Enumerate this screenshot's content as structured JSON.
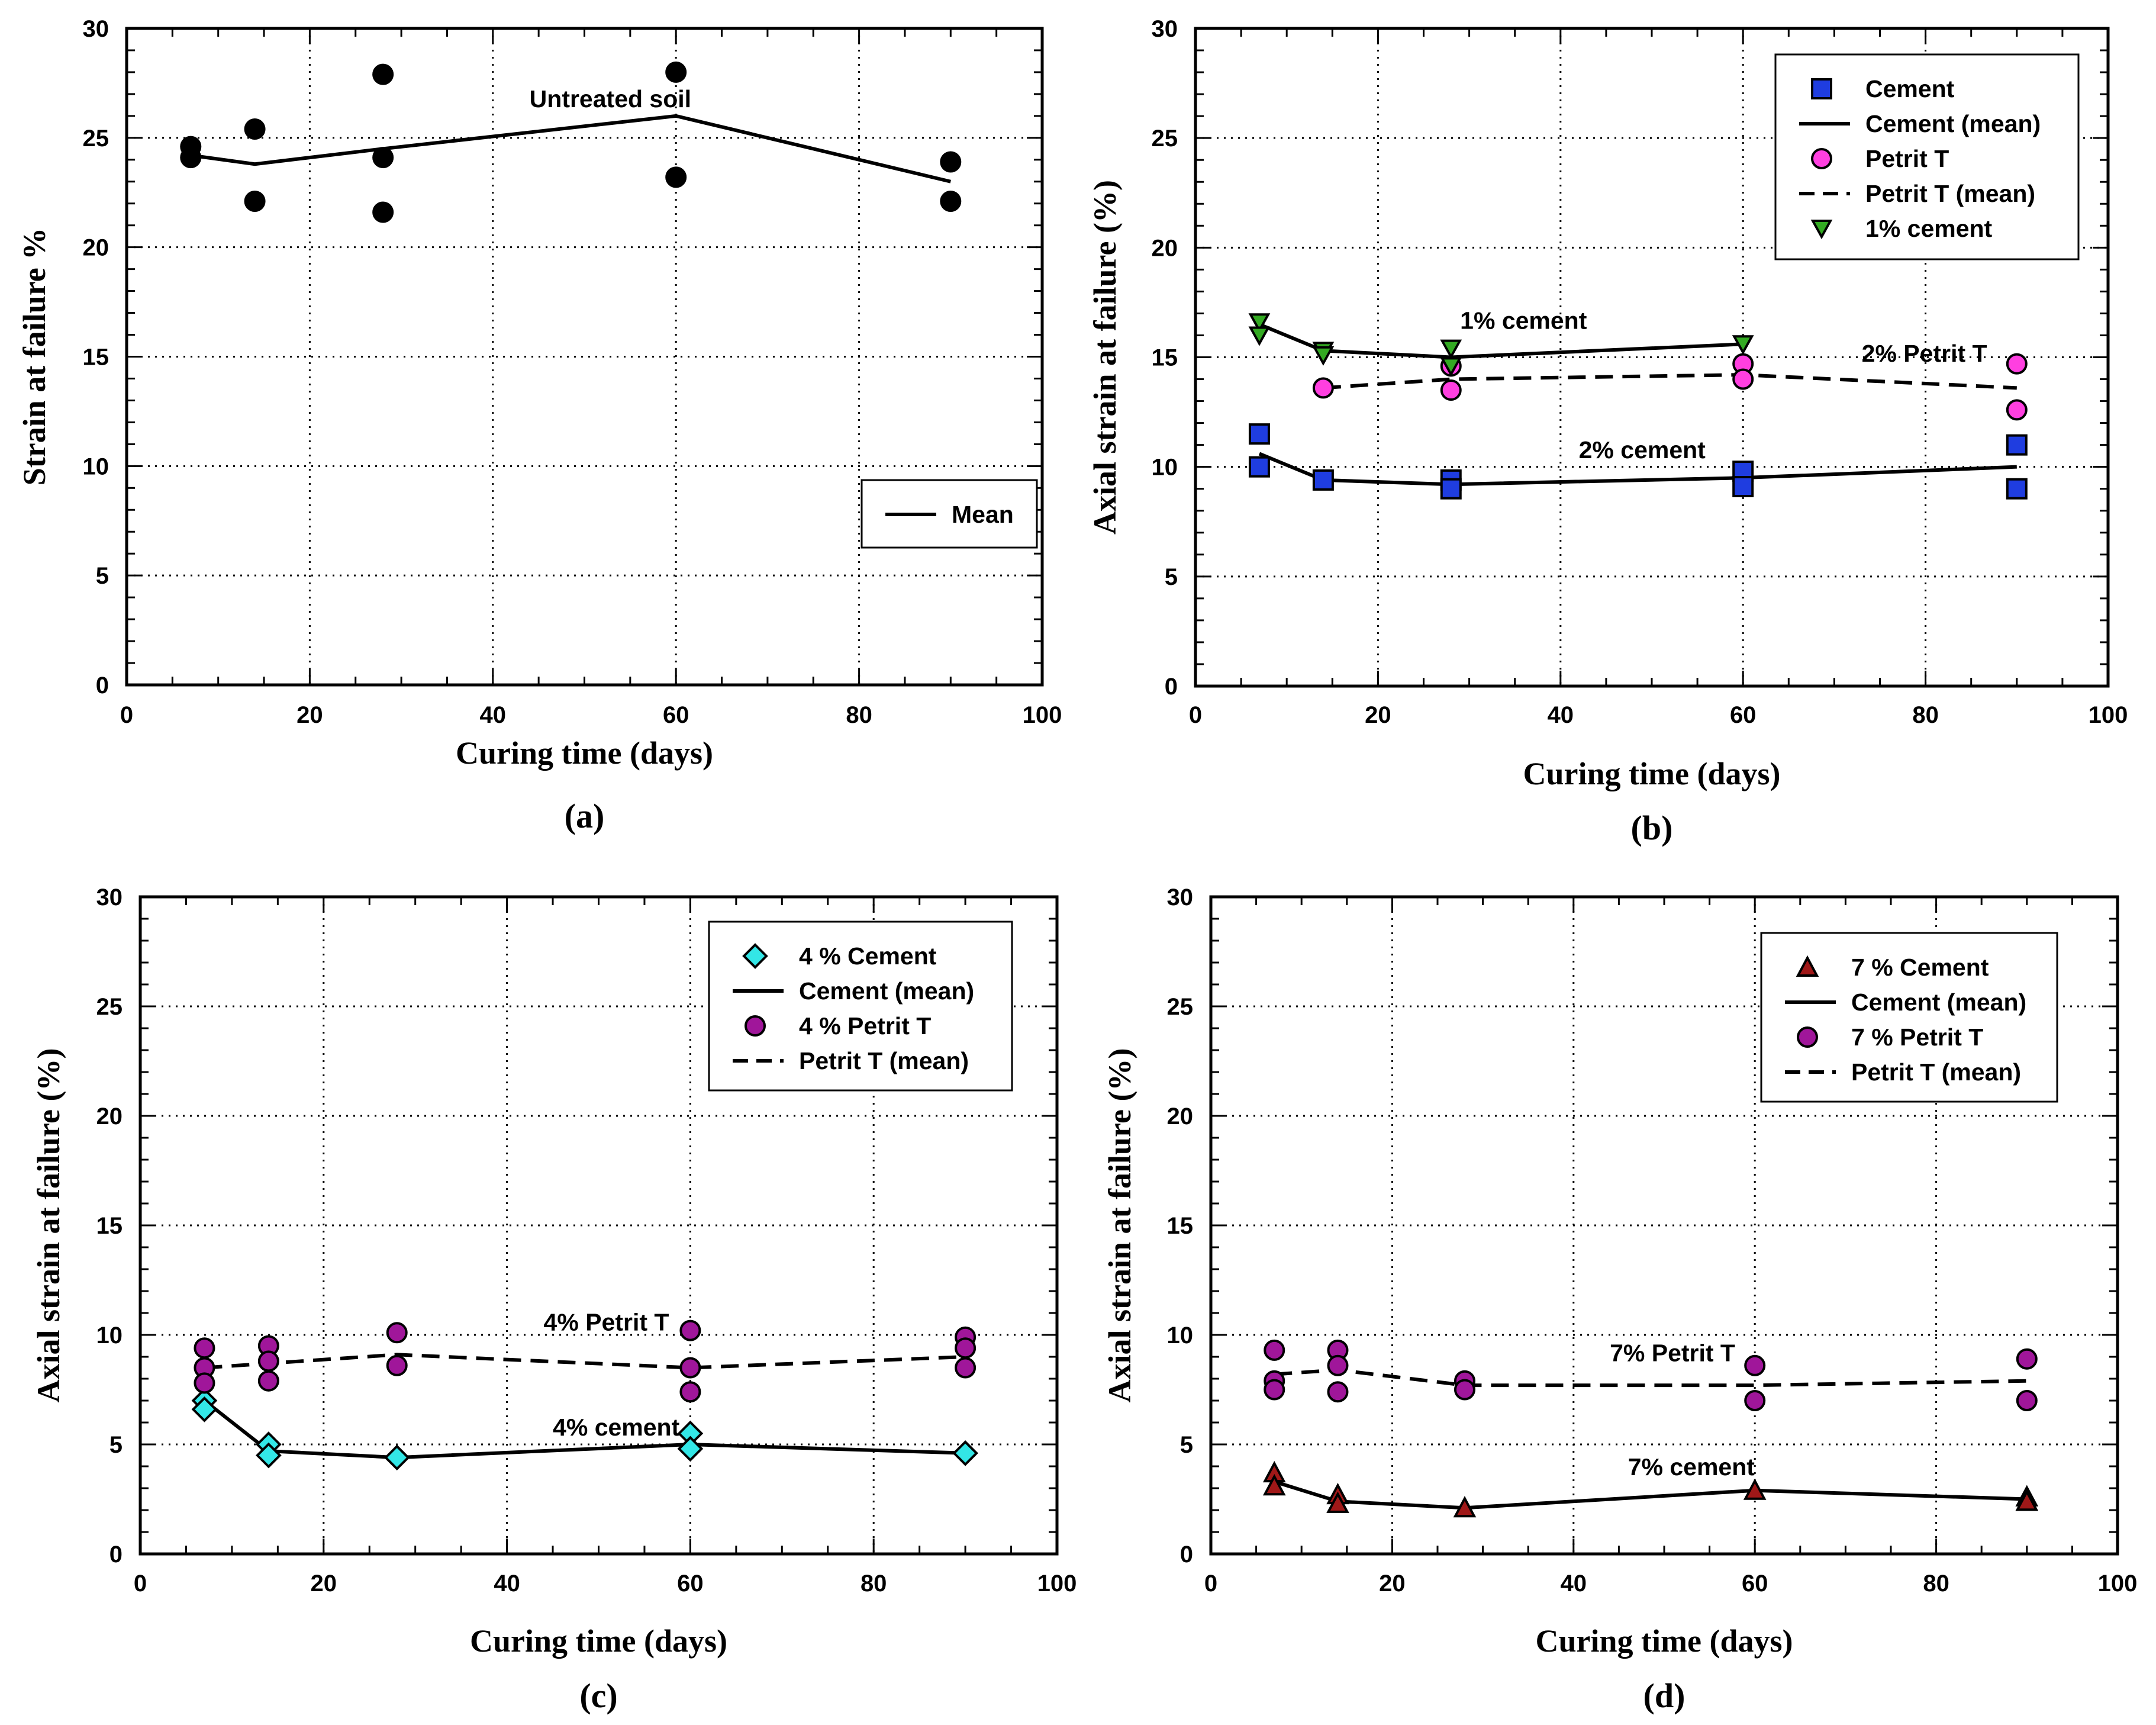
{
  "colors": {
    "background": "#ffffff",
    "axis": "#000000",
    "grid": "#000000",
    "cement_blue": "#1f3de0",
    "petrit_magenta": "#ff3fe0",
    "one_pct_green": "#33aa22",
    "cyan": "#33e6e6",
    "purple": "#a0169a",
    "dark_red": "#a01818",
    "black": "#000000"
  },
  "chart_data": [
    {
      "panel": "(a)",
      "type": "scatter",
      "xlabel": "Curing time (days)",
      "ylabel": "Strain at failure %",
      "xlim": [
        0,
        100
      ],
      "ylim": [
        0,
        30
      ],
      "xticks": [
        0,
        20,
        40,
        60,
        80,
        100
      ],
      "yticks": [
        0,
        5,
        10,
        15,
        20,
        25,
        30
      ],
      "grid": true,
      "legend_position": "right-middle",
      "legend": [
        {
          "label": "Mean",
          "kind": "line",
          "dash": "solid",
          "color": "#000000"
        }
      ],
      "series": [
        {
          "name": "Untreated soil",
          "kind": "points",
          "marker": "circle",
          "fill": "#000000",
          "x": [
            7,
            7,
            14,
            14,
            28,
            28,
            28,
            60,
            60,
            90,
            90
          ],
          "y": [
            24.6,
            24.1,
            25.4,
            22.1,
            27.9,
            24.1,
            21.6,
            28.0,
            23.2,
            23.9,
            22.1
          ]
        },
        {
          "name": "Mean",
          "kind": "line",
          "dash": "solid",
          "color": "#000000",
          "x": [
            7,
            14,
            28,
            60,
            90
          ],
          "y": [
            24.2,
            23.8,
            24.5,
            26.0,
            23.0
          ]
        }
      ],
      "annotations": [
        {
          "text": "Untreated soil",
          "x": 44,
          "y": 26.4
        }
      ]
    },
    {
      "panel": "(b)",
      "type": "scatter",
      "xlabel": "Curing time (days)",
      "ylabel": "Axial strain at failure (%)",
      "xlim": [
        0,
        100
      ],
      "ylim": [
        0,
        30
      ],
      "xticks": [
        0,
        20,
        40,
        60,
        80,
        100
      ],
      "yticks": [
        0,
        5,
        10,
        15,
        20,
        25,
        30
      ],
      "grid": true,
      "legend_position": "top-right",
      "legend": [
        {
          "label": "Cement",
          "kind": "marker",
          "marker": "square",
          "fill": "#1f3de0"
        },
        {
          "label": "Cement (mean)",
          "kind": "line",
          "dash": "solid",
          "color": "#000000"
        },
        {
          "label": "Petrit T",
          "kind": "marker",
          "marker": "circle",
          "fill": "#ff3fe0"
        },
        {
          "label": "Petrit T (mean)",
          "kind": "line",
          "dash": "dashed",
          "color": "#000000"
        },
        {
          "label": "1% cement",
          "kind": "marker",
          "marker": "triangle-down",
          "fill": "#33aa22"
        }
      ],
      "series": [
        {
          "name": "Cement",
          "kind": "points",
          "marker": "square",
          "fill": "#1f3de0",
          "x": [
            7,
            7,
            14,
            28,
            28,
            60,
            60,
            90,
            90
          ],
          "y": [
            11.5,
            10.0,
            9.4,
            9.4,
            9.0,
            9.8,
            9.1,
            11.0,
            9.0
          ]
        },
        {
          "name": "Cement (mean)",
          "kind": "line",
          "dash": "solid",
          "color": "#000000",
          "x": [
            7,
            14,
            28,
            60,
            90
          ],
          "y": [
            10.6,
            9.4,
            9.2,
            9.5,
            10.0
          ]
        },
        {
          "name": "Petrit T",
          "kind": "points",
          "marker": "circle",
          "fill": "#ff3fe0",
          "x": [
            14,
            28,
            28,
            60,
            60,
            90,
            90
          ],
          "y": [
            13.6,
            13.5,
            14.6,
            14.7,
            14.0,
            14.7,
            12.6
          ]
        },
        {
          "name": "Petrit T (mean)",
          "kind": "line",
          "dash": "dashed",
          "color": "#000000",
          "x": [
            14,
            28,
            60,
            90
          ],
          "y": [
            13.6,
            14.0,
            14.2,
            13.6
          ]
        },
        {
          "name": "1% cement",
          "kind": "points",
          "marker": "triangle-down",
          "fill": "#33aa22",
          "x": [
            7,
            7,
            14,
            14,
            28,
            28,
            60
          ],
          "y": [
            16.6,
            16.0,
            15.3,
            15.1,
            15.4,
            14.6,
            15.6
          ]
        },
        {
          "name": "1% cement (mean)",
          "kind": "line",
          "dash": "solid",
          "color": "#000000",
          "x": [
            7,
            14,
            28,
            60
          ],
          "y": [
            16.5,
            15.3,
            15.0,
            15.6
          ]
        }
      ],
      "annotations": [
        {
          "text": "1% cement",
          "x": 29,
          "y": 16.3
        },
        {
          "text": "2% Petrit T",
          "x": 73,
          "y": 14.8
        },
        {
          "text": "2% cement",
          "x": 42,
          "y": 10.4
        }
      ]
    },
    {
      "panel": "(c)",
      "type": "scatter",
      "xlabel": "Curing time (days)",
      "ylabel": "Axial strain at failure (%)",
      "xlim": [
        0,
        100
      ],
      "ylim": [
        0,
        30
      ],
      "xticks": [
        0,
        20,
        40,
        60,
        80,
        100
      ],
      "yticks": [
        0,
        5,
        10,
        15,
        20,
        25,
        30
      ],
      "grid": true,
      "legend_position": "top-right",
      "legend": [
        {
          "label": "4 % Cement",
          "kind": "marker",
          "marker": "diamond",
          "fill": "#33e6e6"
        },
        {
          "label": "Cement (mean)",
          "kind": "line",
          "dash": "solid",
          "color": "#000000"
        },
        {
          "label": "4 % Petrit T",
          "kind": "marker",
          "marker": "circle",
          "fill": "#a0169a"
        },
        {
          "label": "Petrit T (mean)",
          "kind": "line",
          "dash": "dashed",
          "color": "#000000"
        }
      ],
      "series": [
        {
          "name": "4 % Cement",
          "kind": "points",
          "marker": "diamond",
          "fill": "#33e6e6",
          "x": [
            7,
            7,
            14,
            14,
            28,
            60,
            60,
            90
          ],
          "y": [
            7.0,
            6.6,
            5.0,
            4.5,
            4.4,
            5.5,
            4.8,
            4.6
          ]
        },
        {
          "name": "Cement (mean)",
          "kind": "line",
          "dash": "solid",
          "color": "#000000",
          "x": [
            7,
            14,
            28,
            60,
            90
          ],
          "y": [
            7.0,
            4.7,
            4.4,
            5.0,
            4.6
          ]
        },
        {
          "name": "4 % Petrit T",
          "kind": "points",
          "marker": "circle",
          "fill": "#a0169a",
          "x": [
            7,
            7,
            7,
            14,
            14,
            14,
            28,
            28,
            60,
            60,
            60,
            90,
            90,
            90
          ],
          "y": [
            9.4,
            8.5,
            7.8,
            9.5,
            8.8,
            7.9,
            10.1,
            8.6,
            10.2,
            8.5,
            7.4,
            9.9,
            9.4,
            8.5
          ]
        },
        {
          "name": "Petrit T (mean)",
          "kind": "line",
          "dash": "dashed",
          "color": "#000000",
          "x": [
            7,
            14,
            28,
            60,
            90
          ],
          "y": [
            8.5,
            8.7,
            9.1,
            8.5,
            9.0
          ]
        }
      ],
      "annotations": [
        {
          "text": "4% Petrit T",
          "x": 44,
          "y": 10.2
        },
        {
          "text": "4% cement",
          "x": 45,
          "y": 5.4
        }
      ]
    },
    {
      "panel": "(d)",
      "type": "scatter",
      "xlabel": "Curing time (days)",
      "ylabel": "Axial strain at failure (%)",
      "xlim": [
        0,
        100
      ],
      "ylim": [
        0,
        30
      ],
      "xticks": [
        0,
        20,
        40,
        60,
        80,
        100
      ],
      "yticks": [
        0,
        5,
        10,
        15,
        20,
        25,
        30
      ],
      "grid": true,
      "legend_position": "top-right",
      "legend": [
        {
          "label": "7 % Cement",
          "kind": "marker",
          "marker": "triangle-up",
          "fill": "#a01818"
        },
        {
          "label": "Cement (mean)",
          "kind": "line",
          "dash": "solid",
          "color": "#000000"
        },
        {
          "label": "7 % Petrit T",
          "kind": "marker",
          "marker": "circle",
          "fill": "#a0169a"
        },
        {
          "label": "Petrit T (mean)",
          "kind": "line",
          "dash": "dashed",
          "color": "#000000"
        }
      ],
      "series": [
        {
          "name": "7 % Cement",
          "kind": "points",
          "marker": "triangle-up",
          "fill": "#a01818",
          "x": [
            7,
            7,
            14,
            14,
            28,
            60,
            90,
            90
          ],
          "y": [
            3.7,
            3.1,
            2.7,
            2.3,
            2.1,
            2.9,
            2.6,
            2.4
          ]
        },
        {
          "name": "Cement (mean)",
          "kind": "line",
          "dash": "solid",
          "color": "#000000",
          "x": [
            7,
            14,
            28,
            60,
            90
          ],
          "y": [
            3.3,
            2.4,
            2.1,
            2.9,
            2.5
          ]
        },
        {
          "name": "7 % Petrit T",
          "kind": "points",
          "marker": "circle",
          "fill": "#a0169a",
          "x": [
            7,
            7,
            7,
            14,
            14,
            14,
            28,
            28,
            60,
            60,
            90,
            90
          ],
          "y": [
            9.3,
            7.9,
            7.5,
            9.3,
            8.6,
            7.4,
            7.9,
            7.5,
            8.6,
            7.0,
            8.9,
            7.0
          ]
        },
        {
          "name": "Petrit T (mean)",
          "kind": "line",
          "dash": "dashed",
          "color": "#000000",
          "x": [
            7,
            14,
            28,
            60,
            90
          ],
          "y": [
            8.2,
            8.4,
            7.7,
            7.7,
            7.9
          ]
        }
      ],
      "annotations": [
        {
          "text": "7% Petrit T",
          "x": 44,
          "y": 8.8
        },
        {
          "text": "7% cement",
          "x": 46,
          "y": 3.6
        }
      ]
    }
  ]
}
